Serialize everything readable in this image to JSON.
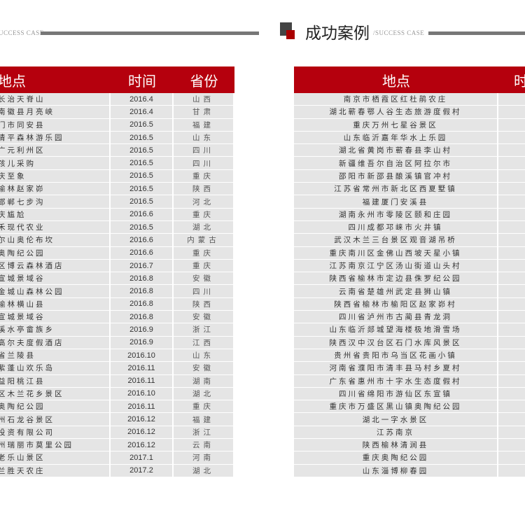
{
  "header": {
    "title": "成功案例",
    "subtitle": "/SUCCESS CASE",
    "left_subtitle": "UCCESS CASE",
    "colors": {
      "accent": "#b5000d",
      "dark": "#444444"
    }
  },
  "left_table": {
    "headers": [
      "地点",
      "时间",
      "省份"
    ],
    "rows": [
      [
        "长治天脊山",
        "2016.4",
        "山西"
      ],
      [
        "南徽县月亮峡",
        "2016.4",
        "甘肃"
      ],
      [
        "门市同安县",
        "2016.5",
        "福建"
      ],
      [
        "清平森林游乐园",
        "2016.5",
        "山东"
      ],
      [
        "广元利州区",
        "2016.5",
        "四川"
      ],
      [
        "孩儿采购",
        "2016.5",
        "四川"
      ],
      [
        "庆至象",
        "2016.5",
        "重庆"
      ],
      [
        "榆林赵家峁",
        "2016.5",
        "陕西"
      ],
      [
        "邯郸七步沟",
        "2016.5",
        "河北"
      ],
      [
        "庆尴尬",
        "2016.6",
        "重庆"
      ],
      [
        "禾现代农业",
        "2016.5",
        "湖北"
      ],
      [
        "尔山奥伦布坎",
        "2016.6",
        "内蒙古"
      ],
      [
        "奥陶纪公园",
        "2016.6",
        "重庆"
      ],
      [
        "区博云森林酒店",
        "2016.7",
        "重庆"
      ],
      [
        "宣城景域谷",
        "2016.8",
        "安徽"
      ],
      [
        "金城山森林公园",
        "2016.8",
        "四川"
      ],
      [
        "榆林横山县",
        "2016.8",
        "陕西"
      ],
      [
        "宣城景域谷",
        "2016.8",
        "安徽"
      ],
      [
        "溪水亭畲族乡",
        "2016.9",
        "浙江"
      ],
      [
        "高尔夫度假酒店",
        "2016.9",
        "江西"
      ],
      [
        "省兰陵县",
        "2016.10",
        "山东"
      ],
      [
        "紫蓬山欢乐岛",
        "2016.11",
        "安徽"
      ],
      [
        "益阳桃江县",
        "2016.11",
        "湖南"
      ],
      [
        "区木兰花乡景区",
        "2016.10",
        "湖北"
      ],
      [
        "奥陶纪公园",
        "2016.11",
        "重庆"
      ],
      [
        "州石龙谷景区",
        "2016.12",
        "福建"
      ],
      [
        "投资有限公司",
        "2016.12",
        "浙江"
      ],
      [
        "州瑞丽市莫里公园",
        "2016.12",
        "云南"
      ],
      [
        "老乐山景区",
        "2017.1",
        "河南"
      ],
      [
        "兰胜天农庄",
        "2017.2",
        "湖北"
      ]
    ]
  },
  "right_table": {
    "headers": [
      "地点",
      "时间"
    ],
    "rows": [
      "南京市栖霞区红杜鹃农庄",
      "湖北蕲春鄂人谷生态旅游度假村",
      "重庆万州七星谷景区",
      "山东临沂嘉年华水上乐园",
      "湖北省黄岗市蕲春县李山村",
      "新疆维吾尔自治区阿拉尔市",
      "邵阳市新邵县酿溪镇官冲村",
      "江苏省常州市新北区西夏墅镇",
      "福建厦门安溪县",
      "湖南永州市零陵区颐和庄园",
      "四川成都邛崃市火井镇",
      "武汉木兰三台景区观音湖吊桥",
      "重庆南川区金佛山西坡天星小镇",
      "江苏南京江宁区汤山街道山头村",
      "陕西省榆林市定边县侏罗纪公园",
      "云南省楚雄州武定县狮山镇",
      "陕西省榆林市榆阳区赵家峁村",
      "四川省泸州市古蔺县青龙洞",
      "山东临沂郯城望海楼极地滑雪场",
      "陕西汉中汉台区石门水库风景区",
      "贵州省贵阳市乌当区花画小镇",
      "河南省濮阳市清丰县马村乡夏村",
      "广东省惠州市十字水生态度假村",
      "四川省绵阳市游仙区东宣镇",
      "重庆市万盛区黑山镇奥陶纪公园",
      "湖北一字水景区",
      "江苏南京",
      "陕西榆林清涧县",
      "重庆奥陶纪公园",
      "山东淄博柳春园"
    ]
  }
}
